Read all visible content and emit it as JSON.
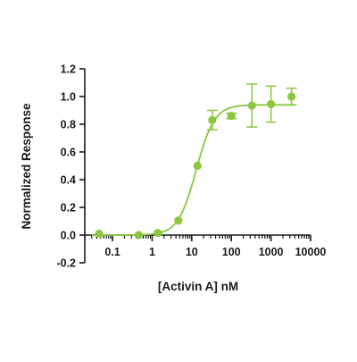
{
  "chart_data": {
    "type": "scatter",
    "title": "",
    "xlabel": "[Activin A] nM",
    "ylabel": "Normalized Response",
    "x_scale": "log",
    "xlim": [
      0.02,
      10000
    ],
    "ylim": [
      -0.2,
      1.2
    ],
    "x_ticks": [
      0.1,
      1,
      10,
      100,
      1000,
      10000
    ],
    "x_tick_labels": [
      "0.1",
      "1",
      "10",
      "100",
      "1000",
      "10000"
    ],
    "y_ticks": [
      -0.2,
      0.0,
      0.2,
      0.4,
      0.6,
      0.8,
      1.0,
      1.2
    ],
    "y_tick_labels": [
      "-0.2",
      "0.0",
      "0.2",
      "0.4",
      "0.6",
      "0.8",
      "1.0",
      "1.2"
    ],
    "grid": false,
    "legend": "none",
    "series": [
      {
        "points": [
          {
            "x": 0.046,
            "y": 0.01,
            "err": 0.0
          },
          {
            "x": 0.46,
            "y": 0.0,
            "err": 0.0
          },
          {
            "x": 1.4,
            "y": 0.015,
            "err": 0.0
          },
          {
            "x": 4.6,
            "y": 0.105,
            "err": 0.0
          },
          {
            "x": 14,
            "y": 0.5,
            "err": 0.0
          },
          {
            "x": 33,
            "y": 0.83,
            "err": 0.07
          },
          {
            "x": 100,
            "y": 0.86,
            "err": 0.02
          },
          {
            "x": 330,
            "y": 0.935,
            "err": 0.155
          },
          {
            "x": 1000,
            "y": 0.945,
            "err": 0.13
          },
          {
            "x": 3300,
            "y": 1.0,
            "err": 0.06
          }
        ]
      }
    ],
    "fit": {
      "model": "4PL sigmoid",
      "bottom": 0.0,
      "top": 0.94,
      "ec50": 13,
      "hill": 1.9
    },
    "colors": {
      "series": "#8cc63f",
      "axis": "#1a1a1a"
    }
  }
}
